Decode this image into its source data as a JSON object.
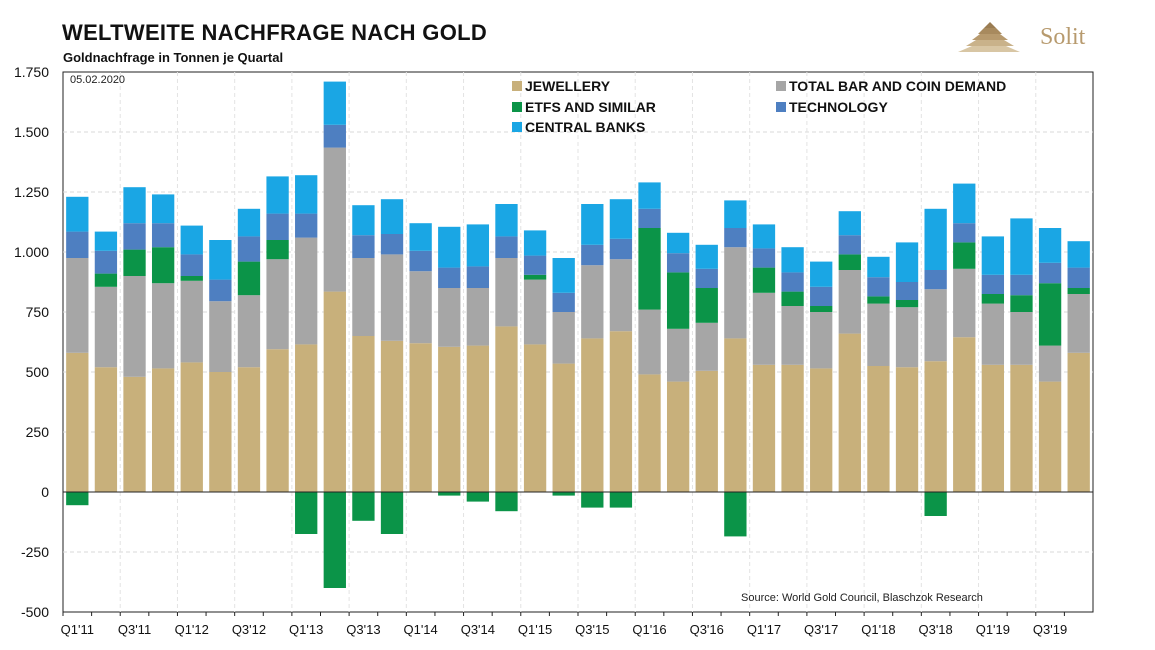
{
  "header": {
    "title": "WELTWEITE NACHFRAGE NACH GOLD",
    "subtitle": "Goldnachfrage in Tonnen je Quartal",
    "brand": "Solit",
    "date": "05.02.2020",
    "source": "Source: World Gold Council, Blaschzok Research"
  },
  "colors": {
    "jewellery": "#c8b07b",
    "bar_coin": "#a6a6a6",
    "etfs": "#0b9448",
    "technology": "#4e7fc1",
    "central_banks": "#1aa6e4",
    "brand_gold": "#b79a6e"
  },
  "chart_data": {
    "type": "bar",
    "stacked": true,
    "title": "WELTWEITE NACHFRAGE NACH GOLD",
    "subtitle": "Goldnachfrage in Tonnen je Quartal",
    "ylim": [
      -500,
      1750
    ],
    "yticks": [
      -500,
      -250,
      0,
      250,
      500,
      750,
      "1.000",
      "1.250",
      "1.500",
      "1.750"
    ],
    "ytick_labels": [
      "-500",
      "-250",
      "0",
      "250",
      "500",
      "750",
      "1.000",
      "1.250",
      "1.500",
      "1.750"
    ],
    "grid": true,
    "legend_position": "top",
    "categories": [
      "Q1'11",
      "Q2'11",
      "Q3'11",
      "Q4'11",
      "Q1'12",
      "Q2'12",
      "Q3'12",
      "Q4'12",
      "Q1'13",
      "Q2'13",
      "Q3'13",
      "Q4'13",
      "Q1'14",
      "Q2'14",
      "Q3'14",
      "Q4'14",
      "Q1'15",
      "Q2'15",
      "Q3'15",
      "Q4'15",
      "Q1'16",
      "Q2'16",
      "Q3'16",
      "Q4'16",
      "Q1'17",
      "Q2'17",
      "Q3'17",
      "Q4'17",
      "Q1'18",
      "Q2'18",
      "Q3'18",
      "Q4'18",
      "Q1'19",
      "Q2'19",
      "Q3'19",
      "Q4'19"
    ],
    "xtick_labels": [
      "Q1'11",
      "Q3'11",
      "Q1'12",
      "Q3'12",
      "Q1'13",
      "Q3'13",
      "Q1'14",
      "Q3'14",
      "Q1'15",
      "Q3'15",
      "Q1'16",
      "Q3'16",
      "Q1'17",
      "Q3'17",
      "Q1'18",
      "Q3'18",
      "Q1'19",
      "Q3'19"
    ],
    "series": [
      {
        "name": "JEWELLERY",
        "color_key": "jewellery",
        "values": [
          580,
          520,
          480,
          515,
          540,
          500,
          520,
          595,
          615,
          835,
          650,
          630,
          620,
          605,
          610,
          690,
          615,
          535,
          640,
          670,
          490,
          460,
          505,
          640,
          530,
          530,
          515,
          660,
          525,
          520,
          545,
          645,
          530,
          530,
          460,
          580
        ]
      },
      {
        "name": "TOTAL BAR AND COIN DEMAND",
        "color_key": "bar_coin",
        "values": [
          395,
          335,
          420,
          355,
          340,
          295,
          300,
          375,
          445,
          600,
          325,
          360,
          300,
          245,
          240,
          285,
          270,
          215,
          305,
          300,
          270,
          220,
          200,
          380,
          300,
          245,
          235,
          265,
          260,
          250,
          300,
          285,
          255,
          220,
          150,
          245
        ]
      },
      {
        "name": "ETFS AND SIMILAR",
        "color_key": "etfs",
        "values": [
          -55,
          55,
          110,
          150,
          20,
          0,
          140,
          80,
          -175,
          -400,
          -120,
          -175,
          0,
          -15,
          -40,
          -80,
          20,
          -15,
          -65,
          -65,
          340,
          235,
          145,
          -185,
          105,
          60,
          25,
          65,
          30,
          30,
          -100,
          110,
          40,
          70,
          260,
          25
        ]
      },
      {
        "name": "TECHNOLOGY",
        "color_key": "technology",
        "values": [
          110,
          95,
          110,
          100,
          90,
          90,
          105,
          110,
          100,
          95,
          95,
          85,
          85,
          85,
          90,
          90,
          80,
          80,
          85,
          85,
          80,
          80,
          80,
          80,
          80,
          80,
          80,
          80,
          80,
          75,
          80,
          80,
          80,
          85,
          85,
          85
        ]
      },
      {
        "name": "CENTRAL BANKS",
        "color_key": "central_banks",
        "values": [
          145,
          80,
          150,
          120,
          120,
          165,
          115,
          155,
          160,
          180,
          125,
          145,
          115,
          170,
          175,
          135,
          105,
          145,
          170,
          165,
          110,
          85,
          100,
          115,
          100,
          105,
          105,
          100,
          85,
          165,
          255,
          165,
          160,
          235,
          145,
          110
        ]
      }
    ]
  }
}
